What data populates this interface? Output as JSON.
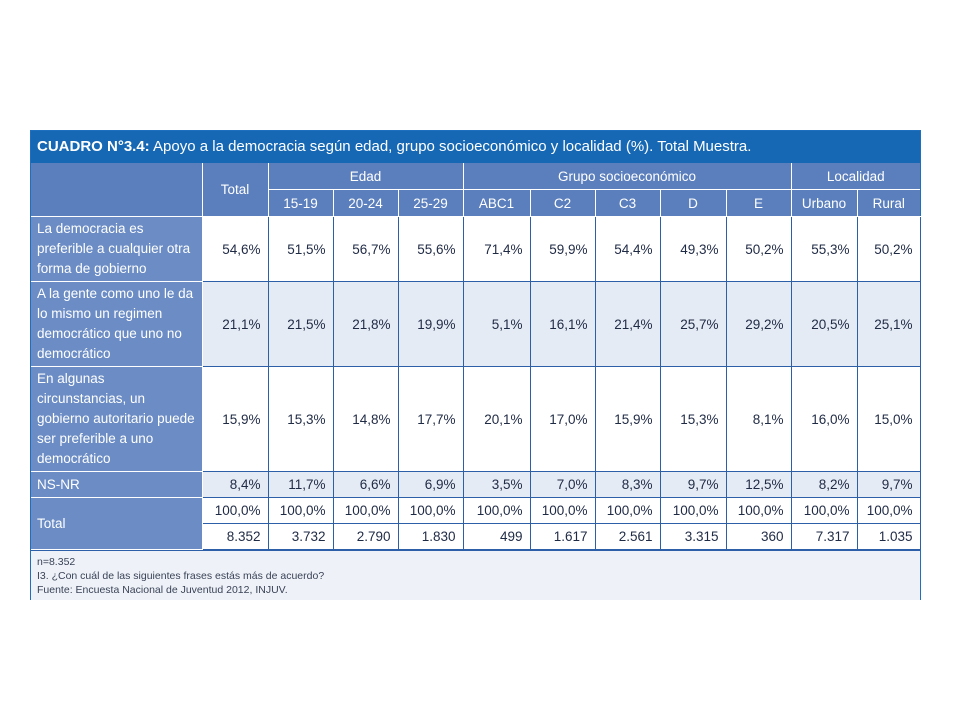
{
  "table": {
    "title_bold": "CUADRO N°3.4:",
    "title_rest": " Apoyo a la democracia según edad, grupo socioeconómico y localidad (%). Total Muestra.",
    "header": {
      "total": "Total",
      "groups": [
        "Edad",
        "Grupo socioeconómico",
        "Localidad"
      ],
      "subcolumns": [
        "15-19",
        "20-24",
        "25-29",
        "ABC1",
        "C2",
        "C3",
        "D",
        "E",
        "Urbano",
        "Rural"
      ]
    },
    "rows": [
      {
        "label": "La democracia es preferible a cualquier otra forma de gobierno",
        "values": [
          "54,6%",
          "51,5%",
          "56,7%",
          "55,6%",
          "71,4%",
          "59,9%",
          "54,4%",
          "49,3%",
          "50,2%",
          "55,3%",
          "50,2%"
        ]
      },
      {
        "label": "A la gente como uno le da lo mismo un regimen democrático que uno no democrático",
        "values": [
          "21,1%",
          "21,5%",
          "21,8%",
          "19,9%",
          "5,1%",
          "16,1%",
          "21,4%",
          "25,7%",
          "29,2%",
          "20,5%",
          "25,1%"
        ]
      },
      {
        "label": "En algunas circunstancias, un gobierno autoritario puede ser preferible a uno democrático",
        "values": [
          "15,9%",
          "15,3%",
          "14,8%",
          "17,7%",
          "20,1%",
          "17,0%",
          "15,9%",
          "15,3%",
          "8,1%",
          "16,0%",
          "15,0%"
        ]
      },
      {
        "label": "NS-NR",
        "values": [
          "8,4%",
          "11,7%",
          "6,6%",
          "6,9%",
          "3,5%",
          "7,0%",
          "8,3%",
          "9,7%",
          "12,5%",
          "8,2%",
          "9,7%"
        ]
      }
    ],
    "total_row": {
      "label": "Total",
      "percent": [
        "100,0%",
        "100,0%",
        "100,0%",
        "100,0%",
        "100,0%",
        "100,0%",
        "100,0%",
        "100,0%",
        "100,0%",
        "100,0%",
        "100,0%"
      ],
      "counts": [
        "8.352",
        "3.732",
        "2.790",
        "1.830",
        "499",
        "1.617",
        "2.561",
        "3.315",
        "360",
        "7.317",
        "1.035"
      ]
    },
    "notes": [
      "n=8.352",
      "I3. ¿Con cuál de las siguientes frases estás más de acuerdo?",
      "Fuente: Encuesta Nacional de Juventud 2012, INJUV."
    ]
  }
}
